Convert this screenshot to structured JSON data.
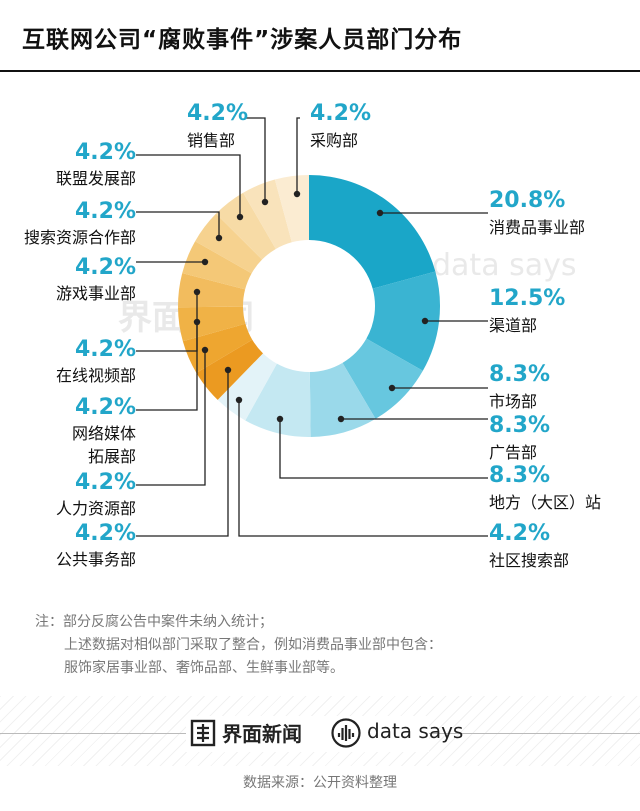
{
  "title": "互联网公司“腐败事件”涉案人员部门分布",
  "chart_data": {
    "type": "pie",
    "title": "互联网公司“腐败事件”涉案人员部门分布",
    "slices": [
      {
        "label": "消费品事业部",
        "value": 20.8,
        "pct": "20.8%",
        "color": "#1aa6c8"
      },
      {
        "label": "渠道部",
        "value": 12.5,
        "pct": "12.5%",
        "color": "#3ab4d2"
      },
      {
        "label": "市场部",
        "value": 8.3,
        "pct": "8.3%",
        "color": "#67c7df"
      },
      {
        "label": "广告部",
        "value": 8.3,
        "pct": "8.3%",
        "color": "#9ad9ea"
      },
      {
        "label": "地方（大区）站",
        "value": 8.3,
        "pct": "8.3%",
        "color": "#c4e8f2"
      },
      {
        "label": "社区搜索部",
        "value": 4.2,
        "pct": "4.2%",
        "color": "#e3f3f8"
      },
      {
        "label": "公共事务部",
        "value": 4.2,
        "pct": "4.2%",
        "color": "#eb9a21"
      },
      {
        "label": "人力资源部",
        "value": 4.2,
        "pct": "4.2%",
        "color": "#eea630"
      },
      {
        "label": "网络媒体拓展部",
        "value": 4.2,
        "pct": "4.2%",
        "color": "#f0b246"
      },
      {
        "label": "在线视频部",
        "value": 4.2,
        "pct": "4.2%",
        "color": "#f2bc5e"
      },
      {
        "label": "游戏事业部",
        "value": 4.2,
        "pct": "4.2%",
        "color": "#f4c877"
      },
      {
        "label": "搜索资源合作部",
        "value": 4.2,
        "pct": "4.2%",
        "color": "#f6d28f"
      },
      {
        "label": "联盟发展部",
        "value": 4.2,
        "pct": "4.2%",
        "color": "#f7dba6"
      },
      {
        "label": "销售部",
        "value": 4.2,
        "pct": "4.2%",
        "color": "#f9e3bb"
      },
      {
        "label": "采购部",
        "value": 4.2,
        "pct": "4.2%",
        "color": "#fbecd2"
      }
    ]
  },
  "labels": {
    "xiaofei": {
      "pct": "20.8%",
      "name": "消费品事业部"
    },
    "qudao": {
      "pct": "12.5%",
      "name": "渠道部"
    },
    "shichang": {
      "pct": "8.3%",
      "name": "市场部"
    },
    "guanggao": {
      "pct": "8.3%",
      "name": "广告部"
    },
    "difang": {
      "pct": "8.3%",
      "name": "地方（大区）站"
    },
    "shequ": {
      "pct": "4.2%",
      "name": "社区搜索部"
    },
    "gonggong": {
      "pct": "4.2%",
      "name": "公共事务部"
    },
    "renli": {
      "pct": "4.2%",
      "name": "人力资源部"
    },
    "wangluo": {
      "pct": "4.2%",
      "name1": "网络媒体",
      "name2": "拓展部"
    },
    "zaixian": {
      "pct": "4.2%",
      "name": "在线视频部"
    },
    "youxi": {
      "pct": "4.2%",
      "name": "游戏事业部"
    },
    "sousuo": {
      "pct": "4.2%",
      "name": "搜索资源合作部"
    },
    "lianmeng": {
      "pct": "4.2%",
      "name": "联盟发展部"
    },
    "xiaoshou": {
      "pct": "4.2%",
      "name": "销售部"
    },
    "caigou": {
      "pct": "4.2%",
      "name": "采购部"
    }
  },
  "notes": {
    "line1": "注：部分反腐公告中案件未纳入统计；",
    "line2": "上述数据对相似部门采取了整合，例如消费品事业部中包含：",
    "line3": "服饰家居事业部、奢饰品部、生鲜事业部等。"
  },
  "footer": {
    "brand_cn": "界面新闻",
    "brand_en": "data says",
    "source": "数据来源：公开资料整理"
  },
  "watermark": {
    "cn": "界面新闻",
    "en": "data says"
  }
}
